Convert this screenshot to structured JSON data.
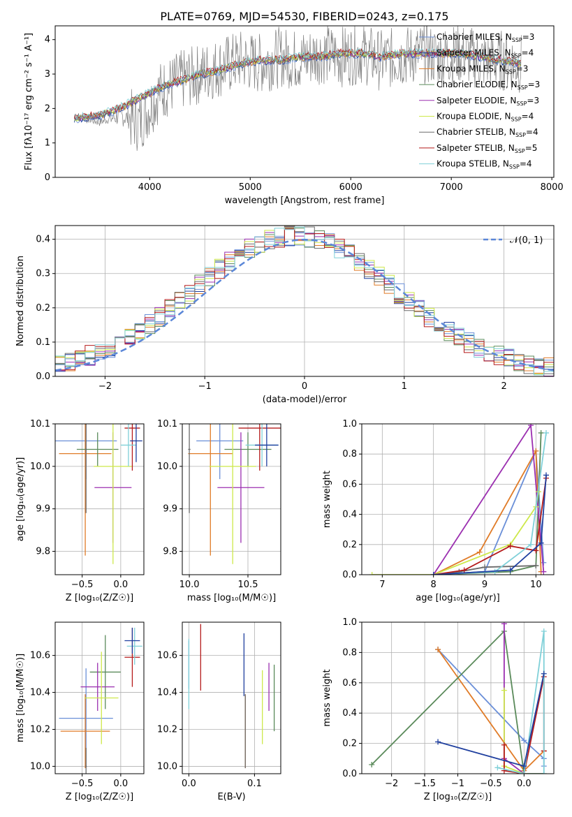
{
  "figure": {
    "title": "PLATE=0769, MJD=54530, FIBERID=0243, z=0.175"
  },
  "series": [
    {
      "name": "Chabrier MILES",
      "nssp": "3",
      "color": "#6a8fd8"
    },
    {
      "name": "Salpeter MILES",
      "nssp": "4",
      "color": "#1f3f9f"
    },
    {
      "name": "Kroupa MILES",
      "nssp": "3",
      "color": "#e07b27"
    },
    {
      "name": "Chabrier ELODIE",
      "nssp": "3",
      "color": "#5a8a5a"
    },
    {
      "name": "Salpeter ELODIE",
      "nssp": "3",
      "color": "#9b2fb0"
    },
    {
      "name": "Kroupa ELODIE",
      "nssp": "4",
      "color": "#cde84a"
    },
    {
      "name": "Chabrier STELIB",
      "nssp": "4",
      "color": "#6b6b6b"
    },
    {
      "name": "Salpeter STELIB",
      "nssp": "5",
      "color": "#b51a1a"
    },
    {
      "name": "Kroupa STELIB",
      "nssp": "4",
      "color": "#7fd0d8"
    }
  ],
  "chart_data": [
    {
      "id": "spectrum",
      "type": "line",
      "xlabel": "wavelength [Angstrom, rest frame]",
      "ylabel": "Flux [fλ10⁻¹⁷ erg cm⁻² s⁻¹ A⁻¹]",
      "xlim": [
        3060,
        8020
      ],
      "ylim": [
        0,
        4.4
      ],
      "xticks": [
        4000,
        5000,
        6000,
        7000,
        8000
      ],
      "yticks": [
        0,
        1,
        2,
        3,
        4
      ],
      "grid": false,
      "legend": "right",
      "data_series": {
        "name": "data",
        "color": "#808080",
        "x": [
          3250,
          3500,
          3700,
          3900,
          4100,
          4300,
          4500,
          4700,
          4900,
          5100,
          5300,
          5500,
          5700,
          5900,
          6100,
          6300,
          6500,
          6700,
          6900,
          7100,
          7300,
          7500,
          7700
        ],
        "y": [
          1.8,
          1.6,
          1.8,
          1.6,
          2.5,
          2.8,
          3.0,
          3.2,
          3.4,
          3.3,
          3.5,
          3.4,
          3.6,
          3.5,
          3.6,
          3.4,
          3.5,
          3.6,
          3.5,
          3.6,
          3.4,
          3.4,
          3.3
        ]
      },
      "model_x": [
        3250,
        3500,
        3700,
        3900,
        4100,
        4300,
        4500,
        4700,
        4900,
        5100,
        5300,
        5500,
        5700,
        5900,
        6100,
        6300,
        6500,
        6700,
        6900,
        7100,
        7300,
        7500,
        7700
      ],
      "model_y": [
        1.7,
        1.8,
        2.0,
        2.3,
        2.6,
        2.8,
        3.0,
        3.1,
        3.3,
        3.4,
        3.4,
        3.5,
        3.5,
        3.6,
        3.6,
        3.5,
        3.6,
        3.6,
        3.6,
        3.6,
        3.5,
        3.4,
        3.3
      ]
    },
    {
      "id": "residuals",
      "type": "bar",
      "xlabel": "(data-model)/error",
      "ylabel": "Normed distribution",
      "xlim": [
        -2.5,
        2.5
      ],
      "ylim": [
        0,
        0.44
      ],
      "xticks": [
        -2,
        -1,
        0,
        1,
        2
      ],
      "yticks": [
        0.0,
        0.1,
        0.2,
        0.3,
        0.4
      ],
      "grid": true,
      "legend": "top-right",
      "gauss_label": "𝒩(0, 1)",
      "gauss_color": "#5b87d8",
      "bin_width": 0.1
    },
    {
      "id": "Z_age",
      "type": "scatter",
      "xlabel": "Z [log₁₀(Z/Z☉)]",
      "ylabel": "age  [log₁₀(age/yr)]",
      "xlim": [
        -0.85,
        0.3
      ],
      "ylim": [
        9.745,
        10.1
      ],
      "xticks": [
        -0.5,
        0.0
      ],
      "yticks": [
        9.8,
        9.9,
        10.0,
        10.1
      ],
      "grid": true,
      "points": [
        {
          "x": -0.45,
          "y": 10.06,
          "xerr": 0.4,
          "yerr": 0.09,
          "s": 0
        },
        {
          "x": -0.46,
          "y": 10.03,
          "xerr": 0.34,
          "yerr": 0.24,
          "s": 2
        },
        {
          "x": -0.3,
          "y": 10.04,
          "xerr": 0.27,
          "yerr": 0.04,
          "s": 3
        },
        {
          "x": -0.1,
          "y": 9.95,
          "xerr": 0.24,
          "yerr": 0.13,
          "s": 4
        },
        {
          "x": -0.1,
          "y": 10.0,
          "xerr": 0.25,
          "yerr": 0.23,
          "s": 5
        },
        {
          "x": -0.45,
          "y": 10.04,
          "xerr": 0.01,
          "yerr": 0.15,
          "s": 6
        },
        {
          "x": 0.15,
          "y": 10.09,
          "xerr": 0.1,
          "yerr": 0.1,
          "s": 7
        },
        {
          "x": 0.1,
          "y": 10.05,
          "xerr": 0.1,
          "yerr": 0.05,
          "s": 8
        },
        {
          "x": 0.2,
          "y": 10.06,
          "xerr": 0.08,
          "yerr": 0.05,
          "s": 1
        }
      ]
    },
    {
      "id": "mass_age",
      "type": "scatter",
      "xlabel": "mass [log₁₀(M/M☉)]",
      "ylabel": "",
      "xlim": [
        9.94,
        10.78
      ],
      "ylim": [
        9.745,
        10.1
      ],
      "xticks": [
        10.0,
        10.5
      ],
      "yticks": [
        9.8,
        9.9,
        10.0,
        10.1
      ],
      "grid": true,
      "points": [
        {
          "x": 10.26,
          "y": 10.06,
          "xerr": 0.2,
          "yerr": 0.09,
          "s": 0
        },
        {
          "x": 10.18,
          "y": 10.03,
          "xerr": 0.19,
          "yerr": 0.24,
          "s": 2
        },
        {
          "x": 10.5,
          "y": 10.04,
          "xerr": 0.2,
          "yerr": 0.04,
          "s": 3
        },
        {
          "x": 10.44,
          "y": 9.95,
          "xerr": 0.2,
          "yerr": 0.13,
          "s": 4
        },
        {
          "x": 10.37,
          "y": 10.0,
          "xerr": 0.2,
          "yerr": 0.23,
          "s": 5
        },
        {
          "x": 10.0,
          "y": 10.04,
          "xerr": 0.01,
          "yerr": 0.15,
          "s": 6
        },
        {
          "x": 10.6,
          "y": 10.09,
          "xerr": 0.18,
          "yerr": 0.1,
          "s": 7
        },
        {
          "x": 10.62,
          "y": 10.05,
          "xerr": 0.14,
          "yerr": 0.05,
          "s": 8
        },
        {
          "x": 10.66,
          "y": 10.05,
          "xerr": 0.1,
          "yerr": 0.05,
          "s": 1
        }
      ]
    },
    {
      "id": "age_weight",
      "type": "line",
      "xlabel": "age  [log₁₀(age/yr)]",
      "ylabel": "mass weight",
      "xlim": [
        6.6,
        10.35
      ],
      "ylim": [
        0,
        1.0
      ],
      "xticks": [
        7,
        8,
        9,
        10
      ],
      "yticks": [
        0.0,
        0.2,
        0.4,
        0.6,
        0.8,
        1.0
      ],
      "grid": true,
      "lines": [
        {
          "s": 0,
          "x": [
            8.0,
            9.0,
            10.0,
            10.15
          ],
          "y": [
            0.0,
            0.02,
            0.82,
            0.08
          ]
        },
        {
          "s": 2,
          "x": [
            8.0,
            8.9,
            10.0,
            10.1
          ],
          "y": [
            0.0,
            0.15,
            0.82,
            0.02
          ]
        },
        {
          "s": 3,
          "x": [
            8.0,
            9.5,
            10.0,
            10.1
          ],
          "y": [
            0.0,
            0.02,
            0.06,
            0.94
          ]
        },
        {
          "s": 4,
          "x": [
            8.0,
            9.9,
            10.15
          ],
          "y": [
            0.0,
            0.99,
            0.02
          ]
        },
        {
          "s": 5,
          "x": [
            6.8,
            8.0,
            9.5,
            10.0,
            10.05
          ],
          "y": [
            0.0,
            0.0,
            0.2,
            0.45,
            0.55
          ]
        },
        {
          "s": 6,
          "x": [
            8.0,
            8.5,
            9.0,
            10.0
          ],
          "y": [
            0.0,
            0.02,
            0.05,
            0.06
          ]
        },
        {
          "s": 7,
          "x": [
            8.0,
            8.6,
            9.5,
            10.0,
            10.2
          ],
          "y": [
            0.0,
            0.03,
            0.19,
            0.16,
            0.64
          ]
        },
        {
          "s": 8,
          "x": [
            8.0,
            9.2,
            9.9,
            10.2
          ],
          "y": [
            0.0,
            0.02,
            0.2,
            0.94
          ]
        },
        {
          "s": 1,
          "x": [
            8.0,
            9.5,
            10.1,
            10.2
          ],
          "y": [
            0.0,
            0.03,
            0.21,
            0.66
          ]
        }
      ]
    },
    {
      "id": "Z_mass",
      "type": "scatter",
      "xlabel": "Z [log₁₀(Z/Z☉)]",
      "ylabel": "mass [log₁₀(M/M☉)]",
      "xlim": [
        -0.85,
        0.3
      ],
      "ylim": [
        9.96,
        10.78
      ],
      "xticks": [
        -0.5,
        0.0
      ],
      "yticks": [
        10.0,
        10.2,
        10.4,
        10.6
      ],
      "grid": true,
      "points": [
        {
          "x": -0.45,
          "y": 10.26,
          "xerr": 0.35,
          "yerr": 0.27,
          "s": 0
        },
        {
          "x": -0.46,
          "y": 10.19,
          "xerr": 0.32,
          "yerr": 0.2,
          "s": 2
        },
        {
          "x": -0.2,
          "y": 10.51,
          "xerr": 0.2,
          "yerr": 0.2,
          "s": 3
        },
        {
          "x": -0.3,
          "y": 10.43,
          "xerr": 0.22,
          "yerr": 0.13,
          "s": 4
        },
        {
          "x": -0.25,
          "y": 10.37,
          "xerr": 0.22,
          "yerr": 0.25,
          "s": 5
        },
        {
          "x": -0.45,
          "y": 10.0,
          "xerr": 0.01,
          "yerr": 0.1,
          "s": 6
        },
        {
          "x": 0.15,
          "y": 10.59,
          "xerr": 0.1,
          "yerr": 0.16,
          "s": 7
        },
        {
          "x": 0.18,
          "y": 10.65,
          "xerr": 0.1,
          "yerr": 0.1,
          "s": 8
        },
        {
          "x": 0.15,
          "y": 10.68,
          "xerr": 0.1,
          "yerr": 0.07,
          "s": 1
        }
      ]
    },
    {
      "id": "EBV_mass",
      "type": "scatter",
      "xlabel": "E(B-V)",
      "ylabel": "",
      "xlim": [
        -0.01,
        0.14
      ],
      "ylim": [
        9.96,
        10.78
      ],
      "xticks": [
        0.0,
        0.1
      ],
      "yticks": [
        10.0,
        10.2,
        10.4,
        10.6
      ],
      "grid": true,
      "points": [
        {
          "x": 0.0,
          "y": 10.55,
          "xerr": 0,
          "yerr": 0.13,
          "s": 0
        },
        {
          "x": 0.086,
          "y": 10.19,
          "xerr": 0,
          "yerr": 0.2,
          "s": 2
        },
        {
          "x": 0.13,
          "y": 10.37,
          "xerr": 0,
          "yerr": 0.18,
          "s": 3
        },
        {
          "x": 0.122,
          "y": 10.43,
          "xerr": 0,
          "yerr": 0.13,
          "s": 4
        },
        {
          "x": 0.112,
          "y": 10.32,
          "xerr": 0,
          "yerr": 0.2,
          "s": 5
        },
        {
          "x": 0.086,
          "y": 10.19,
          "xerr": 0,
          "yerr": 0.2,
          "s": 6
        },
        {
          "x": 0.018,
          "y": 10.59,
          "xerr": 0,
          "yerr": 0.18,
          "s": 7
        },
        {
          "x": 0.0,
          "y": 10.5,
          "xerr": 0,
          "yerr": 0.19,
          "s": 8
        },
        {
          "x": 0.084,
          "y": 10.55,
          "xerr": 0,
          "yerr": 0.17,
          "s": 1
        }
      ]
    },
    {
      "id": "Z_weight",
      "type": "line",
      "xlabel": "Z [log₁₀(Z/Z☉)]",
      "ylabel": "mass weight",
      "xlim": [
        -2.45,
        0.45
      ],
      "ylim": [
        0,
        1.0
      ],
      "xticks": [
        -2.0,
        -1.5,
        -1.0,
        -0.5,
        0.0
      ],
      "yticks": [
        0.0,
        0.2,
        0.4,
        0.6,
        0.8,
        1.0
      ],
      "grid": true,
      "lines": [
        {
          "s": 0,
          "x": [
            -1.3,
            0.0,
            0.3,
            0.3
          ],
          "y": [
            0.82,
            0.22,
            0.1,
            0.05
          ]
        },
        {
          "s": 2,
          "x": [
            -1.3,
            0.0,
            0.3
          ],
          "y": [
            0.82,
            0.02,
            0.15
          ]
        },
        {
          "s": 3,
          "x": [
            -2.3,
            -0.3,
            0.0,
            0.3
          ],
          "y": [
            0.06,
            0.94,
            0.0,
            0.0
          ]
        },
        {
          "s": 4,
          "x": [
            -0.3,
            -0.3,
            0.0
          ],
          "y": [
            0.99,
            0.1,
            0.0
          ]
        },
        {
          "s": 5,
          "x": [
            -0.3,
            -0.3,
            0.0
          ],
          "y": [
            0.55,
            0.05,
            0.0
          ]
        },
        {
          "s": 7,
          "x": [
            -0.3,
            -0.3,
            0.0,
            0.3,
            0.3
          ],
          "y": [
            0.19,
            0.02,
            0.0,
            0.64,
            0.15
          ]
        },
        {
          "s": 8,
          "x": [
            -0.4,
            0.0,
            0.3,
            0.3
          ],
          "y": [
            0.04,
            0.0,
            0.94,
            0.0
          ]
        },
        {
          "s": 1,
          "x": [
            -1.3,
            0.0,
            0.3
          ],
          "y": [
            0.21,
            0.05,
            0.66
          ]
        }
      ]
    }
  ]
}
